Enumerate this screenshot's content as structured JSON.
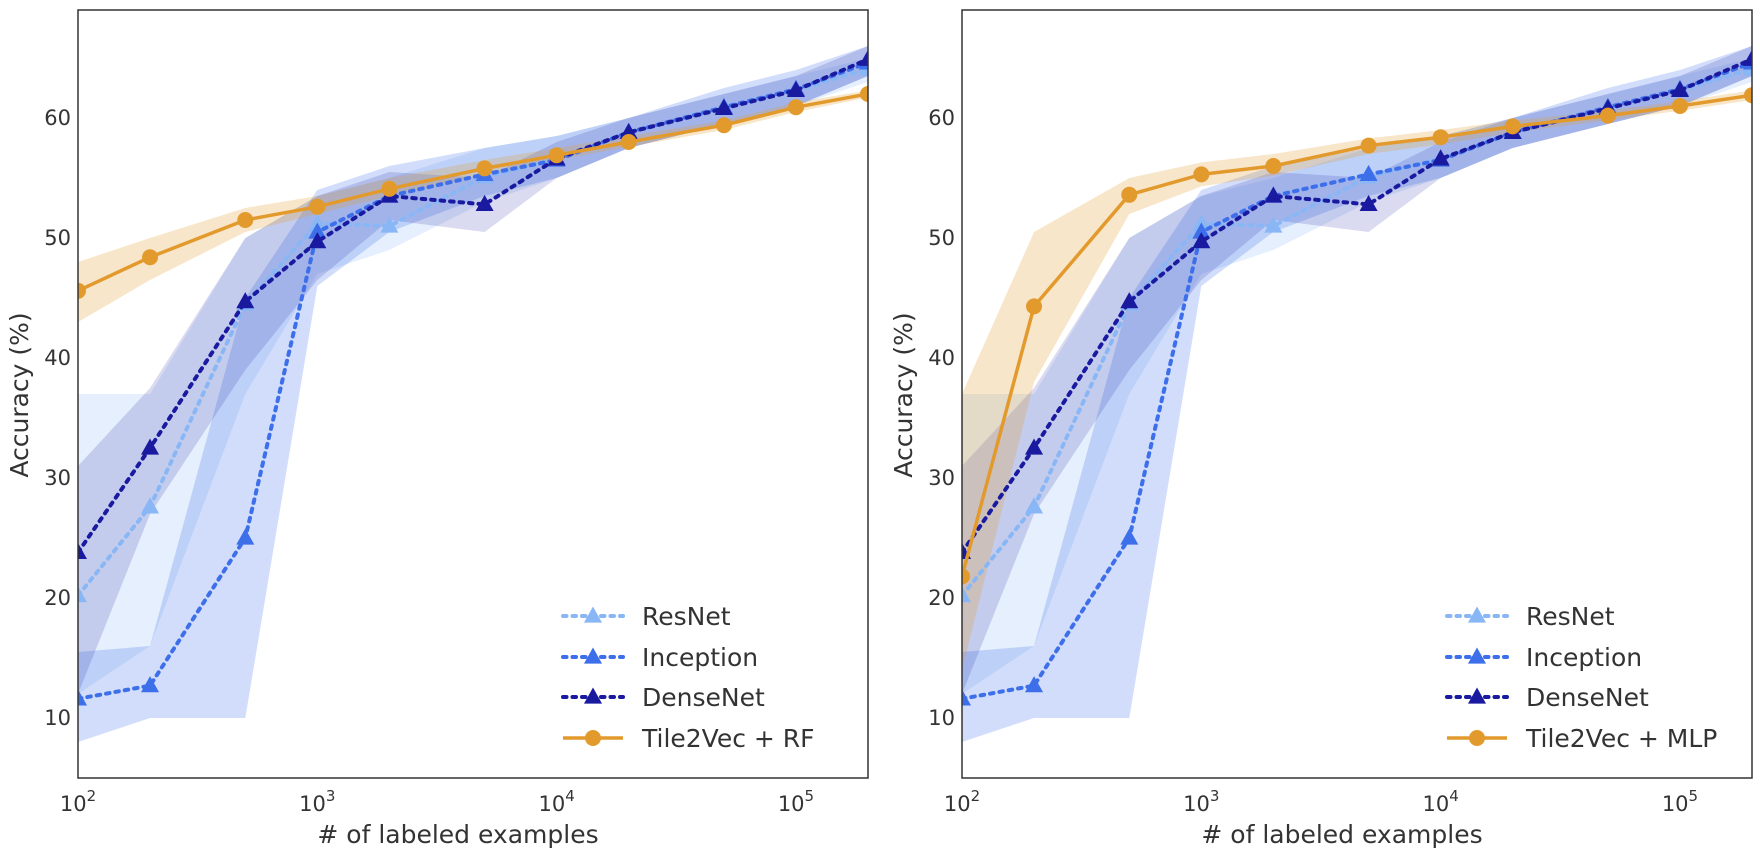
{
  "chart_data": [
    {
      "type": "line",
      "xscale": "log",
      "xlim": [
        100,
        200000
      ],
      "ylim": [
        5,
        69
      ],
      "xlabel": "# of labeled examples",
      "ylabel": "Accuracy (%)",
      "xticks": [
        {
          "value": 100,
          "base": "10",
          "exp": "2"
        },
        {
          "value": 1000,
          "base": "10",
          "exp": "3"
        },
        {
          "value": 10000,
          "base": "10",
          "exp": "4"
        },
        {
          "value": 100000,
          "base": "10",
          "exp": "5"
        }
      ],
      "yticks": [
        {
          "value": 10,
          "label": "10"
        },
        {
          "value": 20,
          "label": "20"
        },
        {
          "value": 30,
          "label": "30"
        },
        {
          "value": 40,
          "label": "40"
        },
        {
          "value": 50,
          "label": "50"
        },
        {
          "value": 60,
          "label": "60"
        }
      ],
      "legend_position": "lower-right",
      "series": [
        {
          "name": "ResNet",
          "color": "#89b7f5",
          "style": "dotted",
          "marker": "triangle",
          "band_opacity": 0.22,
          "x": [
            100,
            200,
            500,
            1000,
            2000,
            5000,
            10000,
            20000,
            50000,
            100000,
            200000
          ],
          "values": [
            20.2,
            27.6,
            44.5,
            51.2,
            51.0,
            55.1,
            56.6,
            58.8,
            60.8,
            62.3,
            64.1
          ],
          "lower": [
            12.0,
            16.0,
            37.0,
            47.0,
            49.0,
            53.0,
            55.0,
            57.5,
            59.5,
            61.0,
            63.0
          ],
          "upper": [
            37.0,
            37.0,
            50.0,
            53.5,
            55.0,
            57.5,
            58.5,
            60.0,
            62.0,
            63.5,
            65.0
          ]
        },
        {
          "name": "Inception",
          "color": "#3d6fea",
          "style": "dotted",
          "marker": "triangle",
          "band_opacity": 0.24,
          "x": [
            100,
            200,
            500,
            1000,
            2000,
            5000,
            10000,
            20000,
            50000,
            100000,
            200000
          ],
          "values": [
            11.6,
            12.7,
            25.0,
            50.5,
            53.5,
            55.3,
            56.5,
            58.8,
            60.9,
            62.4,
            64.6
          ],
          "lower": [
            8.0,
            10.0,
            10.0,
            46.0,
            50.5,
            53.5,
            55.0,
            57.5,
            59.5,
            61.0,
            63.5
          ],
          "upper": [
            15.5,
            16.0,
            45.0,
            54.0,
            56.0,
            57.5,
            58.5,
            60.0,
            62.5,
            64.0,
            66.0
          ]
        },
        {
          "name": "DenseNet",
          "color": "#1a1aa0",
          "style": "dotted",
          "marker": "triangle",
          "band_opacity": 0.16,
          "x": [
            100,
            200,
            500,
            1000,
            2000,
            5000,
            10000,
            20000,
            50000,
            100000,
            200000
          ],
          "values": [
            23.8,
            32.5,
            44.7,
            49.7,
            53.5,
            52.8,
            56.6,
            58.8,
            60.8,
            62.3,
            64.9
          ],
          "lower": [
            12.0,
            27.0,
            39.0,
            46.5,
            51.5,
            50.5,
            55.0,
            57.5,
            59.5,
            61.0,
            63.5
          ],
          "upper": [
            31.0,
            37.5,
            50.0,
            53.5,
            55.5,
            55.0,
            58.0,
            60.0,
            62.0,
            63.5,
            66.0
          ]
        }
      ],
      "tile_series": {
        "name": "Tile2Vec + RF",
        "color": "#e39a2d",
        "style": "solid",
        "marker": "circle",
        "band_opacity": 0.25,
        "x": [
          100,
          200,
          500,
          1000,
          2000,
          5000,
          10000,
          20000,
          50000,
          100000,
          200000
        ],
        "values": [
          45.6,
          48.4,
          51.5,
          52.6,
          54.1,
          55.8,
          56.9,
          58.0,
          59.4,
          60.9,
          62.0
        ],
        "lower": [
          43.0,
          46.5,
          50.5,
          52.0,
          53.5,
          55.3,
          56.5,
          57.6,
          59.0,
          60.5,
          61.7
        ],
        "upper": [
          48.0,
          50.0,
          52.5,
          53.5,
          55.0,
          56.5,
          57.5,
          58.5,
          59.8,
          61.3,
          62.3
        ]
      }
    },
    {
      "type": "line",
      "xscale": "log",
      "xlim": [
        100,
        200000
      ],
      "ylim": [
        5,
        69
      ],
      "xlabel": "# of labeled examples",
      "ylabel": "Accuracy (%)",
      "xticks": [
        {
          "value": 100,
          "base": "10",
          "exp": "2"
        },
        {
          "value": 1000,
          "base": "10",
          "exp": "3"
        },
        {
          "value": 10000,
          "base": "10",
          "exp": "4"
        },
        {
          "value": 100000,
          "base": "10",
          "exp": "5"
        }
      ],
      "yticks": [
        {
          "value": 10,
          "label": "10"
        },
        {
          "value": 20,
          "label": "20"
        },
        {
          "value": 30,
          "label": "30"
        },
        {
          "value": 40,
          "label": "40"
        },
        {
          "value": 50,
          "label": "50"
        },
        {
          "value": 60,
          "label": "60"
        }
      ],
      "legend_position": "lower-right",
      "series": [
        {
          "name": "ResNet",
          "color": "#89b7f5",
          "style": "dotted",
          "marker": "triangle",
          "band_opacity": 0.22,
          "x": [
            100,
            200,
            500,
            1000,
            2000,
            5000,
            10000,
            20000,
            50000,
            100000,
            200000
          ],
          "values": [
            20.2,
            27.6,
            44.5,
            51.2,
            51.0,
            55.1,
            56.6,
            58.8,
            60.8,
            62.3,
            64.1
          ],
          "lower": [
            12.0,
            16.0,
            37.0,
            47.0,
            49.0,
            53.0,
            55.0,
            57.5,
            59.5,
            61.0,
            63.0
          ],
          "upper": [
            37.0,
            37.0,
            50.0,
            53.5,
            55.0,
            57.5,
            58.5,
            60.0,
            62.0,
            63.5,
            65.0
          ]
        },
        {
          "name": "Inception",
          "color": "#3d6fea",
          "style": "dotted",
          "marker": "triangle",
          "band_opacity": 0.24,
          "x": [
            100,
            200,
            500,
            1000,
            2000,
            5000,
            10000,
            20000,
            50000,
            100000,
            200000
          ],
          "values": [
            11.6,
            12.7,
            25.0,
            50.5,
            53.5,
            55.3,
            56.5,
            58.8,
            60.9,
            62.4,
            64.6
          ],
          "lower": [
            8.0,
            10.0,
            10.0,
            46.0,
            50.5,
            53.5,
            55.0,
            57.5,
            59.5,
            61.0,
            63.5
          ],
          "upper": [
            15.5,
            16.0,
            45.0,
            54.0,
            56.0,
            57.5,
            58.5,
            60.0,
            62.5,
            64.0,
            66.0
          ]
        },
        {
          "name": "DenseNet",
          "color": "#1a1aa0",
          "style": "dotted",
          "marker": "triangle",
          "band_opacity": 0.16,
          "x": [
            100,
            200,
            500,
            1000,
            2000,
            5000,
            10000,
            20000,
            50000,
            100000,
            200000
          ],
          "values": [
            23.8,
            32.5,
            44.7,
            49.7,
            53.5,
            52.8,
            56.6,
            58.8,
            60.8,
            62.3,
            64.9
          ],
          "lower": [
            12.0,
            27.0,
            39.0,
            46.5,
            51.5,
            50.5,
            55.0,
            57.5,
            59.5,
            61.0,
            63.5
          ],
          "upper": [
            31.0,
            37.5,
            50.0,
            53.5,
            55.5,
            55.0,
            58.0,
            60.0,
            62.0,
            63.5,
            66.0
          ]
        }
      ],
      "tile_series": {
        "name": "Tile2Vec + MLP",
        "color": "#e39a2d",
        "style": "solid",
        "marker": "circle",
        "band_opacity": 0.25,
        "x": [
          100,
          200,
          500,
          1000,
          2000,
          5000,
          10000,
          20000,
          50000,
          100000,
          200000
        ],
        "values": [
          21.8,
          44.3,
          53.6,
          55.3,
          56.0,
          57.7,
          58.4,
          59.3,
          60.2,
          61.0,
          61.9
        ],
        "lower": [
          14.0,
          38.0,
          52.0,
          54.3,
          55.2,
          57.0,
          57.8,
          58.8,
          59.8,
          60.6,
          61.5
        ],
        "upper": [
          37.0,
          50.5,
          55.0,
          56.3,
          57.0,
          58.3,
          59.0,
          59.8,
          60.6,
          61.4,
          62.3
        ]
      }
    }
  ]
}
